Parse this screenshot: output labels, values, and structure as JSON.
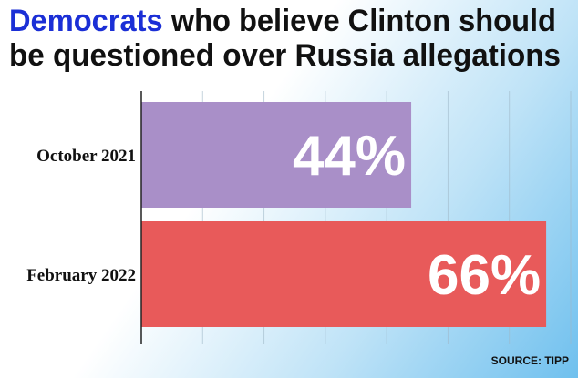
{
  "chart_data": {
    "type": "hbar",
    "title_highlight": "Democrats",
    "title_line1": "who believe Clinton should",
    "title_line2": "be questioned over Russia allegations",
    "categories": [
      "October 2021",
      "February 2022"
    ],
    "values": [
      44,
      66
    ],
    "value_labels": [
      "44%",
      "66%"
    ],
    "colors": [
      "#a98fc8",
      "#e85a5a"
    ],
    "xlim": [
      0,
      70
    ],
    "xticks": [
      0,
      10,
      20,
      30,
      40,
      50,
      60,
      70
    ],
    "grid": true,
    "source": "SOURCE: TIPP"
  }
}
